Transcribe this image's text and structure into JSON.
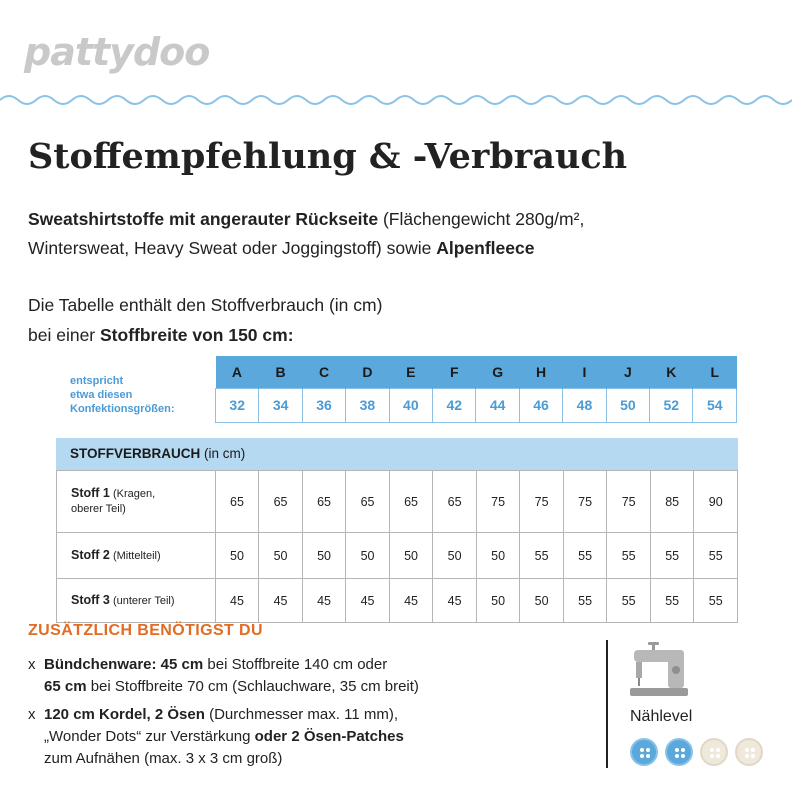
{
  "logo": "pattydoo",
  "title": "Stoffempfehlung & -Verbrauch",
  "intro": {
    "bold1": "Sweatshirtstoffe mit angerauter Rückseite",
    "text1": " (Flächengewicht 280g/m²,",
    "text2": "Wintersweat, Heavy Sweat oder Joggingstoff) sowie ",
    "bold2": "Alpenfleece"
  },
  "table_intro": {
    "line1": "Die Tabelle enthält den Stoffverbrauch (in cm)",
    "line2_prefix": "bei einer ",
    "line2_bold": "Stoffbreite von 150 cm:"
  },
  "sizes": {
    "caption": [
      "entspricht",
      "etwa diesen",
      "Konfektionsgrößen:"
    ],
    "letters": [
      "A",
      "B",
      "C",
      "D",
      "E",
      "F",
      "G",
      "H",
      "I",
      "J",
      "K",
      "L"
    ],
    "numbers": [
      "32",
      "34",
      "36",
      "38",
      "40",
      "42",
      "44",
      "46",
      "48",
      "50",
      "52",
      "54"
    ]
  },
  "consumption": {
    "heading_bold": "STOFFVERBRAUCH",
    "heading_unit": "(in cm)",
    "rows": [
      {
        "name": "Stoff 1",
        "note_a": "(Kragen,",
        "note_b": "oberer Teil)",
        "values": [
          "65",
          "65",
          "65",
          "65",
          "65",
          "65",
          "75",
          "75",
          "75",
          "75",
          "85",
          "90"
        ]
      },
      {
        "name": "Stoff 2",
        "note_a": "(Mittelteil)",
        "note_b": "",
        "values": [
          "50",
          "50",
          "50",
          "50",
          "50",
          "50",
          "50",
          "55",
          "55",
          "55",
          "55",
          "55"
        ]
      },
      {
        "name": "Stoff 3",
        "note_a": "(unterer Teil)",
        "note_b": "",
        "values": [
          "45",
          "45",
          "45",
          "45",
          "45",
          "45",
          "50",
          "50",
          "55",
          "55",
          "55",
          "55"
        ]
      }
    ]
  },
  "additional": {
    "title": "ZUSÄTZLICH BENÖTIGST DU",
    "marker": "x",
    "item1": {
      "b1": "Bündchenware: 45 cm",
      "t1": " bei Stoffbreite 140 cm oder",
      "b2": "65 cm",
      "t2": " bei Stoffbreite 70 cm (Schlauchware, 35 cm breit)"
    },
    "item2": {
      "b1": "120 cm Kordel, 2 Ösen",
      "t1": " (Durchmesser max. 11 mm),",
      "t2": "„Wonder Dots“ zur Verstärkung ",
      "b2": "oder 2 Ösen-Patches",
      "t3": "zum Aufnähen (max. 3 x 3 cm groß)"
    }
  },
  "level": {
    "label": "Nählevel",
    "value": 2,
    "max": 4,
    "icon": "sewing-machine-icon",
    "colors": {
      "active": "#5aa8dc",
      "inactive": "#efe9dc"
    }
  },
  "colors": {
    "accent": "#5aa8dc",
    "orange": "#e06c25",
    "logo": "#c9c9c9"
  }
}
